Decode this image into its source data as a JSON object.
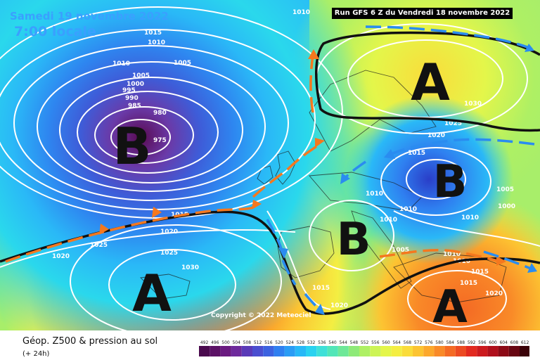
{
  "header": {
    "date": "Samedi 19 novembre 2022",
    "time": "7:00 locale",
    "run": "Run GFS 6 Z du Vendredi 18 novembre 2022"
  },
  "map": {
    "pressure_systems": [
      {
        "letter": "B",
        "kind": "low"
      },
      {
        "letter": "A",
        "kind": "high"
      },
      {
        "letter": "A",
        "kind": "high"
      },
      {
        "letter": "B",
        "kind": "low"
      },
      {
        "letter": "B",
        "kind": "low"
      },
      {
        "letter": "A",
        "kind": "high"
      }
    ],
    "isobar_labels": [
      "1010",
      "1015",
      "1010",
      "1010",
      "1005",
      "1005",
      "1000",
      "995",
      "990",
      "985",
      "980",
      "975",
      "1015",
      "1020",
      "1025",
      "1025",
      "1020",
      "1030",
      "1030",
      "1025",
      "1020",
      "1015",
      "1010",
      "1005",
      "1000",
      "1010",
      "1010",
      "1010",
      "1005",
      "1015",
      "1010",
      "1010",
      "1015",
      "1020",
      "1015",
      "1020"
    ],
    "copyright": "Copyright © 2022 Meteociel"
  },
  "footer": {
    "title": "Géop. Z500 & pression au sol",
    "subtitle": "(+ 24h)"
  },
  "scale": {
    "ticks": [
      "492",
      "496",
      "500",
      "504",
      "508",
      "512",
      "516",
      "520",
      "524",
      "528",
      "532",
      "536",
      "540",
      "544",
      "548",
      "552",
      "556",
      "560",
      "564",
      "568",
      "572",
      "576",
      "580",
      "584",
      "588",
      "592",
      "596",
      "600",
      "604",
      "608",
      "612"
    ],
    "colors": [
      "#4a0a4e",
      "#5c1266",
      "#6a1a80",
      "#6e2a9c",
      "#5a3ab8",
      "#4a4ed0",
      "#3c62e0",
      "#2f7ff0",
      "#2a9cf5",
      "#27b8f7",
      "#2ad2f0",
      "#3ee0d8",
      "#52e6b8",
      "#6ee898",
      "#8eea78",
      "#aef064",
      "#cdf455",
      "#e4f64a",
      "#f4ee42",
      "#fadc3a",
      "#fcc432",
      "#fca82c",
      "#f98a28",
      "#f46a24",
      "#ec4a22",
      "#e22a20",
      "#cc1a1e",
      "#b0101c",
      "#8c0a16",
      "#680612",
      "#3a0208"
    ]
  }
}
